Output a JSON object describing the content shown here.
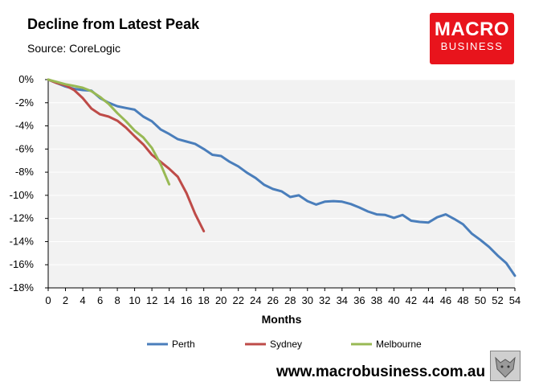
{
  "header": {
    "title": "Decline from Latest Peak",
    "source": "Source: CoreLogic"
  },
  "logo": {
    "line1": "MACRO",
    "line2": "BUSINESS",
    "color": "#e8141c"
  },
  "footer": {
    "url": "www.macrobusiness.com.au"
  },
  "chart_data": {
    "type": "line",
    "title": "Decline from Latest Peak",
    "xlabel": "Months",
    "ylabel": "",
    "xlim": [
      0,
      54
    ],
    "ylim": [
      -18,
      0
    ],
    "x_ticks": [
      0,
      2,
      4,
      6,
      8,
      10,
      12,
      14,
      16,
      18,
      20,
      22,
      24,
      26,
      28,
      30,
      32,
      34,
      36,
      38,
      40,
      42,
      44,
      46,
      48,
      50,
      52,
      54
    ],
    "y_ticks": [
      0,
      -2,
      -4,
      -6,
      -8,
      -10,
      -12,
      -14,
      -16,
      -18
    ],
    "y_tick_labels": [
      "0%",
      "-2%",
      "-4%",
      "-6%",
      "-8%",
      "-10%",
      "-12%",
      "-14%",
      "-16%",
      "-18%"
    ],
    "grid": "horizontal",
    "plot_background": "#f2f2f2",
    "legend_position": "bottom",
    "series": [
      {
        "name": "Perth",
        "color": "#4a7ebb",
        "values": [
          0,
          -0.3,
          -0.6,
          -0.8,
          -0.9,
          -0.95,
          -1.6,
          -2.0,
          -2.3,
          -2.45,
          -2.6,
          -3.2,
          -3.6,
          -4.3,
          -4.7,
          -5.15,
          -5.35,
          -5.55,
          -6.0,
          -6.5,
          -6.6,
          -7.1,
          -7.5,
          -8.05,
          -8.5,
          -9.1,
          -9.45,
          -9.65,
          -10.15,
          -10.0,
          -10.5,
          -10.8,
          -10.55,
          -10.5,
          -10.55,
          -10.75,
          -11.05,
          -11.4,
          -11.65,
          -11.7,
          -11.95,
          -11.7,
          -12.2,
          -12.3,
          -12.35,
          -11.9,
          -11.65,
          -12.05,
          -12.5,
          -13.3,
          -13.85,
          -14.45,
          -15.2,
          -15.85,
          -16.95
        ]
      },
      {
        "name": "Sydney",
        "color": "#be4b48",
        "values": [
          0,
          -0.3,
          -0.5,
          -0.9,
          -1.6,
          -2.5,
          -3.0,
          -3.2,
          -3.55,
          -4.15,
          -4.9,
          -5.6,
          -6.5,
          -7.1,
          -7.7,
          -8.4,
          -9.8,
          -11.6,
          -13.1
        ]
      },
      {
        "name": "Melbourne",
        "color": "#98b954",
        "values": [
          0,
          -0.2,
          -0.4,
          -0.55,
          -0.7,
          -1.0,
          -1.5,
          -2.1,
          -2.9,
          -3.6,
          -4.4,
          -5.0,
          -5.9,
          -7.3,
          -9.05
        ]
      }
    ]
  }
}
